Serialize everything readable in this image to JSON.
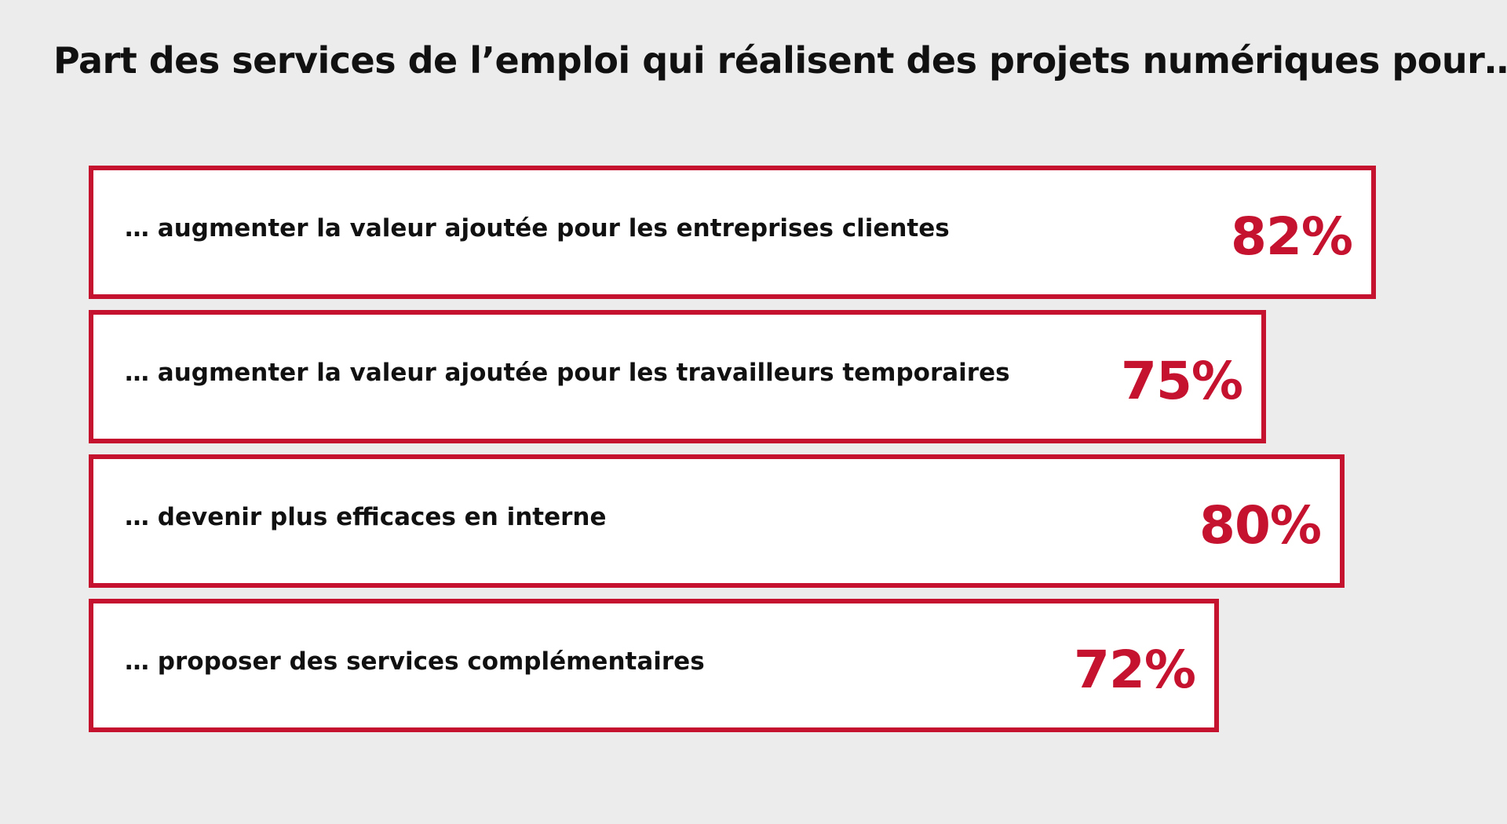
{
  "chart_data": {
    "type": "bar",
    "orientation": "horizontal",
    "title": "Part des services de l’emploi qui réalisent des projets numériques pour…",
    "categories": [
      "… augmenter la valeur ajoutée pour les entreprises clientes",
      "… augmenter la valeur ajoutée pour les travailleurs temporaires",
      "… devenir plus efficaces en interne",
      "… proposer des services complémentaires"
    ],
    "values": [
      82,
      75,
      80,
      72
    ],
    "value_labels": [
      "82%",
      "75%",
      "80%",
      "72%"
    ],
    "unit": "%",
    "grid": false,
    "colors": {
      "border": "#c4122f",
      "value_text": "#c4122f",
      "bar_fill": "#ffffff",
      "background": "#ebeceb",
      "text": "#111111"
    }
  }
}
